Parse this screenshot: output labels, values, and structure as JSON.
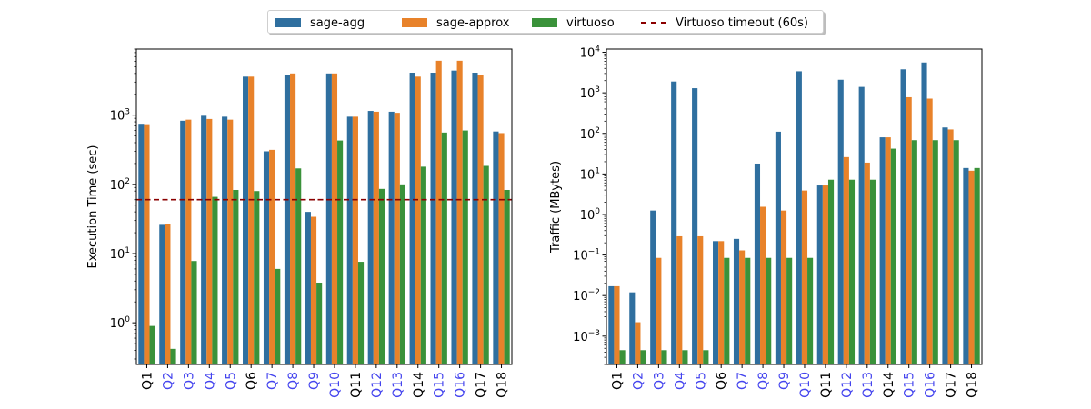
{
  "colors": {
    "sage_agg": "#2f6f9f",
    "sage_approx": "#e8822a",
    "virtuoso": "#3a923a",
    "timeout": "#8b0000",
    "highlight_tick": "#4444ee"
  },
  "legend": {
    "entries": [
      {
        "label": "sage-agg",
        "color": "#2f6f9f",
        "kind": "patch"
      },
      {
        "label": "sage-approx",
        "color": "#e8822a",
        "kind": "patch"
      },
      {
        "label": "virtuoso",
        "color": "#3a923a",
        "kind": "patch"
      },
      {
        "label": "Virtuoso timeout (60s)",
        "color": "#8b0000",
        "kind": "dashed-line"
      }
    ],
    "placement": "top-center"
  },
  "chart_data": [
    {
      "type": "bar",
      "ylabel": "Execution Time (sec)",
      "yscale": "log",
      "ylim": [
        0.25,
        9000
      ],
      "yticks": [
        {
          "value": 1,
          "exp": "0"
        },
        {
          "value": 10,
          "exp": "1"
        },
        {
          "value": 100,
          "exp": "2"
        },
        {
          "value": 1000,
          "exp": "3"
        }
      ],
      "categories": [
        "Q1",
        "Q2",
        "Q3",
        "Q4",
        "Q5",
        "Q6",
        "Q7",
        "Q8",
        "Q9",
        "Q10",
        "Q11",
        "Q12",
        "Q13",
        "Q14",
        "Q15",
        "Q16",
        "Q17",
        "Q18"
      ],
      "highlighted_categories": [
        "Q2",
        "Q3",
        "Q4",
        "Q5",
        "Q7",
        "Q8",
        "Q9",
        "Q10",
        "Q12",
        "Q13",
        "Q15",
        "Q16"
      ],
      "series": [
        {
          "name": "sage-agg",
          "values": [
            750,
            26,
            830,
            980,
            950,
            3600,
            300,
            3750,
            40,
            4000,
            950,
            1150,
            1120,
            4100,
            4100,
            4400,
            4100,
            580
          ]
        },
        {
          "name": "sage-approx",
          "values": [
            740,
            27,
            860,
            880,
            860,
            3600,
            315,
            4000,
            34,
            4000,
            950,
            1120,
            1080,
            3600,
            6100,
            6100,
            3800,
            550
          ]
        },
        {
          "name": "virtuoso",
          "values": [
            0.9,
            0.42,
            7.8,
            66,
            83,
            80,
            6,
            170,
            3.8,
            430,
            7.6,
            86,
            100,
            180,
            560,
            600,
            185,
            83
          ]
        }
      ],
      "reference_line": {
        "name": "Virtuoso timeout (60s)",
        "value": 60,
        "style": "dashed"
      }
    },
    {
      "type": "bar",
      "ylabel": "Traffic (MBytes)",
      "yscale": "log",
      "ylim": [
        0.0002,
        12000
      ],
      "yticks": [
        {
          "value": 0.001,
          "exp": "−3"
        },
        {
          "value": 0.01,
          "exp": "−2"
        },
        {
          "value": 0.1,
          "exp": "−1"
        },
        {
          "value": 1,
          "exp": "0"
        },
        {
          "value": 10,
          "exp": "1"
        },
        {
          "value": 100,
          "exp": "2"
        },
        {
          "value": 1000,
          "exp": "3"
        },
        {
          "value": 10000,
          "exp": "4"
        }
      ],
      "categories": [
        "Q1",
        "Q2",
        "Q3",
        "Q4",
        "Q5",
        "Q6",
        "Q7",
        "Q8",
        "Q9",
        "Q10",
        "Q11",
        "Q12",
        "Q13",
        "Q14",
        "Q15",
        "Q16",
        "Q17",
        "Q18"
      ],
      "highlighted_categories": [
        "Q2",
        "Q3",
        "Q4",
        "Q5",
        "Q7",
        "Q8",
        "Q9",
        "Q10",
        "Q12",
        "Q13",
        "Q15",
        "Q16"
      ],
      "series": [
        {
          "name": "sage-agg",
          "values": [
            0.017,
            0.012,
            1.25,
            1900,
            1300,
            0.22,
            0.25,
            18,
            110,
            3400,
            5.2,
            2100,
            1400,
            80,
            3800,
            5600,
            140,
            14
          ]
        },
        {
          "name": "sage-approx",
          "values": [
            0.017,
            0.0022,
            0.085,
            0.29,
            0.29,
            0.22,
            0.13,
            1.55,
            1.25,
            3.9,
            5.2,
            26,
            19,
            80,
            780,
            720,
            125,
            12
          ]
        },
        {
          "name": "virtuoso",
          "values": [
            0.00045,
            0.00045,
            0.00045,
            0.00045,
            0.00045,
            0.085,
            0.085,
            0.085,
            0.085,
            0.085,
            7.2,
            7.2,
            7.2,
            42,
            68,
            68,
            68,
            14
          ]
        }
      ]
    }
  ]
}
